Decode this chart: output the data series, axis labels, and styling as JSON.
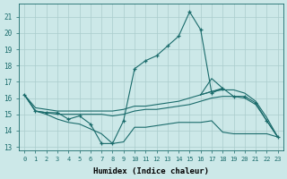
{
  "background_color": "#cce8e8",
  "grid_color": "#aacccc",
  "line_color": "#1a6b6b",
  "xlabel": "Humidex (Indice chaleur)",
  "ylabel_ticks": [
    13,
    14,
    15,
    16,
    17,
    18,
    19,
    20,
    21
  ],
  "xlim": [
    -0.5,
    23.5
  ],
  "ylim": [
    12.8,
    21.8
  ],
  "series": {
    "main_zigzag": {
      "x": [
        0,
        1,
        2,
        3,
        4,
        5,
        6,
        7,
        8,
        9,
        10,
        11,
        12,
        13,
        14,
        15,
        16,
        17,
        18,
        19,
        20,
        21,
        22,
        23
      ],
      "y": [
        16.2,
        15.2,
        15.1,
        15.1,
        14.7,
        14.9,
        14.4,
        13.2,
        13.2,
        14.6,
        17.8,
        18.3,
        18.6,
        19.2,
        19.8,
        21.3,
        20.2,
        16.3,
        16.6,
        16.1,
        16.1,
        15.7,
        14.6,
        13.6
      ]
    },
    "line_upper": {
      "x": [
        0,
        1,
        2,
        3,
        4,
        5,
        6,
        7,
        8,
        9,
        10,
        11,
        12,
        13,
        14,
        15,
        16,
        17,
        18,
        19,
        20,
        21,
        22,
        23
      ],
      "y": [
        16.2,
        15.4,
        15.3,
        15.2,
        15.2,
        15.2,
        15.2,
        15.2,
        15.2,
        15.3,
        15.5,
        15.5,
        15.6,
        15.7,
        15.8,
        16.0,
        16.2,
        16.4,
        16.5,
        16.5,
        16.3,
        15.8,
        14.8,
        13.6
      ]
    },
    "line_mid": {
      "x": [
        0,
        1,
        2,
        3,
        4,
        5,
        6,
        7,
        8,
        9,
        10,
        11,
        12,
        13,
        14,
        15,
        16,
        17,
        18,
        19,
        20,
        21,
        22,
        23
      ],
      "y": [
        16.2,
        15.2,
        15.1,
        15.0,
        15.0,
        15.0,
        15.0,
        15.0,
        14.9,
        15.0,
        15.2,
        15.3,
        15.3,
        15.4,
        15.5,
        15.6,
        15.8,
        16.0,
        16.1,
        16.1,
        16.0,
        15.6,
        14.6,
        13.6
      ]
    },
    "line_lower": {
      "x": [
        0,
        1,
        2,
        3,
        4,
        5,
        6,
        7,
        8,
        9,
        10,
        11,
        12,
        13,
        14,
        15,
        16,
        17,
        18,
        19,
        20,
        21,
        22,
        23
      ],
      "y": [
        16.2,
        15.2,
        15.0,
        14.7,
        14.5,
        14.4,
        14.1,
        13.8,
        13.2,
        13.3,
        14.2,
        14.2,
        14.3,
        14.4,
        14.5,
        14.5,
        14.5,
        14.6,
        13.9,
        13.8,
        13.8,
        13.8,
        13.8,
        13.6
      ]
    },
    "triangle": {
      "x": [
        16,
        17,
        18,
        16
      ],
      "y": [
        16.2,
        17.2,
        16.6,
        16.2
      ]
    }
  }
}
